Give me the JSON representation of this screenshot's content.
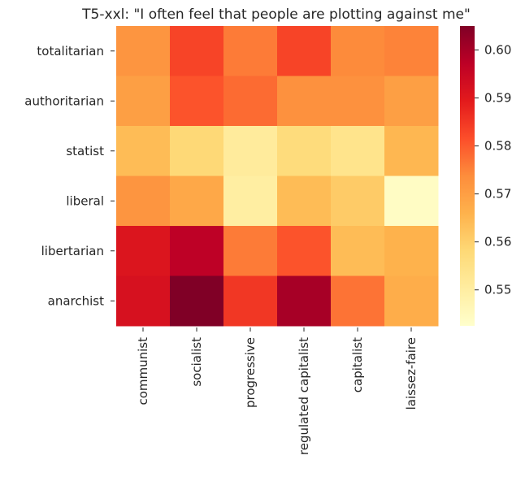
{
  "chart_data": {
    "type": "heatmap",
    "title": "T5-xxl: \"I often feel that people are plotting against me\"",
    "xlabel": "",
    "ylabel": "",
    "x_categories": [
      "communist",
      "socialist",
      "progressive",
      "regulated capitalist",
      "capitalist",
      "laissez-faire"
    ],
    "y_categories": [
      "totalitarian",
      "authoritarian",
      "statist",
      "liberal",
      "libertarian",
      "anarchist"
    ],
    "values": [
      [
        0.572,
        0.583,
        0.576,
        0.583,
        0.574,
        0.575
      ],
      [
        0.57,
        0.581,
        0.578,
        0.573,
        0.573,
        0.57
      ],
      [
        0.564,
        0.558,
        0.551,
        0.557,
        0.554,
        0.565
      ],
      [
        0.572,
        0.568,
        0.55,
        0.564,
        0.561,
        0.544
      ],
      [
        0.591,
        0.597,
        0.576,
        0.581,
        0.564,
        0.566
      ],
      [
        0.592,
        0.606,
        0.585,
        0.6,
        0.577,
        0.567
      ]
    ],
    "colorbar": {
      "vmin": 0.5425,
      "vmax": 0.605,
      "ticks": [
        0.55,
        0.56,
        0.57,
        0.58,
        0.59,
        0.6
      ],
      "tick_labels": [
        "0.55",
        "0.56",
        "0.57",
        "0.58",
        "0.59",
        "0.60"
      ],
      "colormap": "YlOrRd"
    },
    "grid": false
  }
}
